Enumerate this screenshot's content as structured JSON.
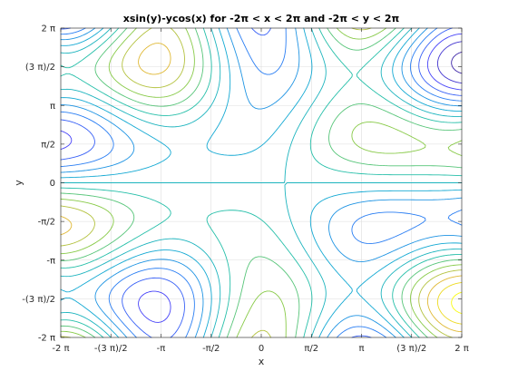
{
  "chart_data": {
    "type": "contour",
    "function": "x*sin(y) - y*cos(x)",
    "title": "xsin(y)-ycos(x) for -2π < x < 2π and -2π < y < 2π",
    "xlabel": "x",
    "ylabel": "y",
    "xlim": [
      -6.2832,
      6.2832
    ],
    "ylim": [
      -6.2832,
      6.2832
    ],
    "x_ticks": [
      -6.2832,
      -4.7124,
      -3.1416,
      -1.5708,
      0,
      1.5708,
      3.1416,
      4.7124,
      6.2832
    ],
    "x_tick_labels": [
      "-2 π",
      "-(3 π)/2",
      "-π",
      "-π/2",
      "0",
      "π/2",
      "π",
      "(3 π)/2",
      "2 π"
    ],
    "y_ticks": [
      -6.2832,
      -4.7124,
      -3.1416,
      -1.5708,
      0,
      1.5708,
      3.1416,
      4.7124,
      6.2832
    ],
    "y_tick_labels": [
      "-2 π",
      "-(3 π)/2",
      "-π",
      "-π/2",
      "0",
      "π/2",
      "π",
      "(3 π)/2",
      "2 π"
    ],
    "levels": [
      -10.5,
      -9,
      -7.5,
      -6,
      -4.5,
      -3,
      -1.5,
      0,
      1.5,
      3,
      4.5,
      6,
      7.5,
      9,
      10.5
    ],
    "colormap": [
      "#3e26a8",
      "#4743f8",
      "#2a7ef3",
      "#14a9d3",
      "#26bfa9",
      "#88ca48",
      "#e0b936",
      "#f9fb0e"
    ],
    "grid": true
  },
  "colors": {
    "axis": "#262626",
    "grid": "#dcdcdc"
  }
}
